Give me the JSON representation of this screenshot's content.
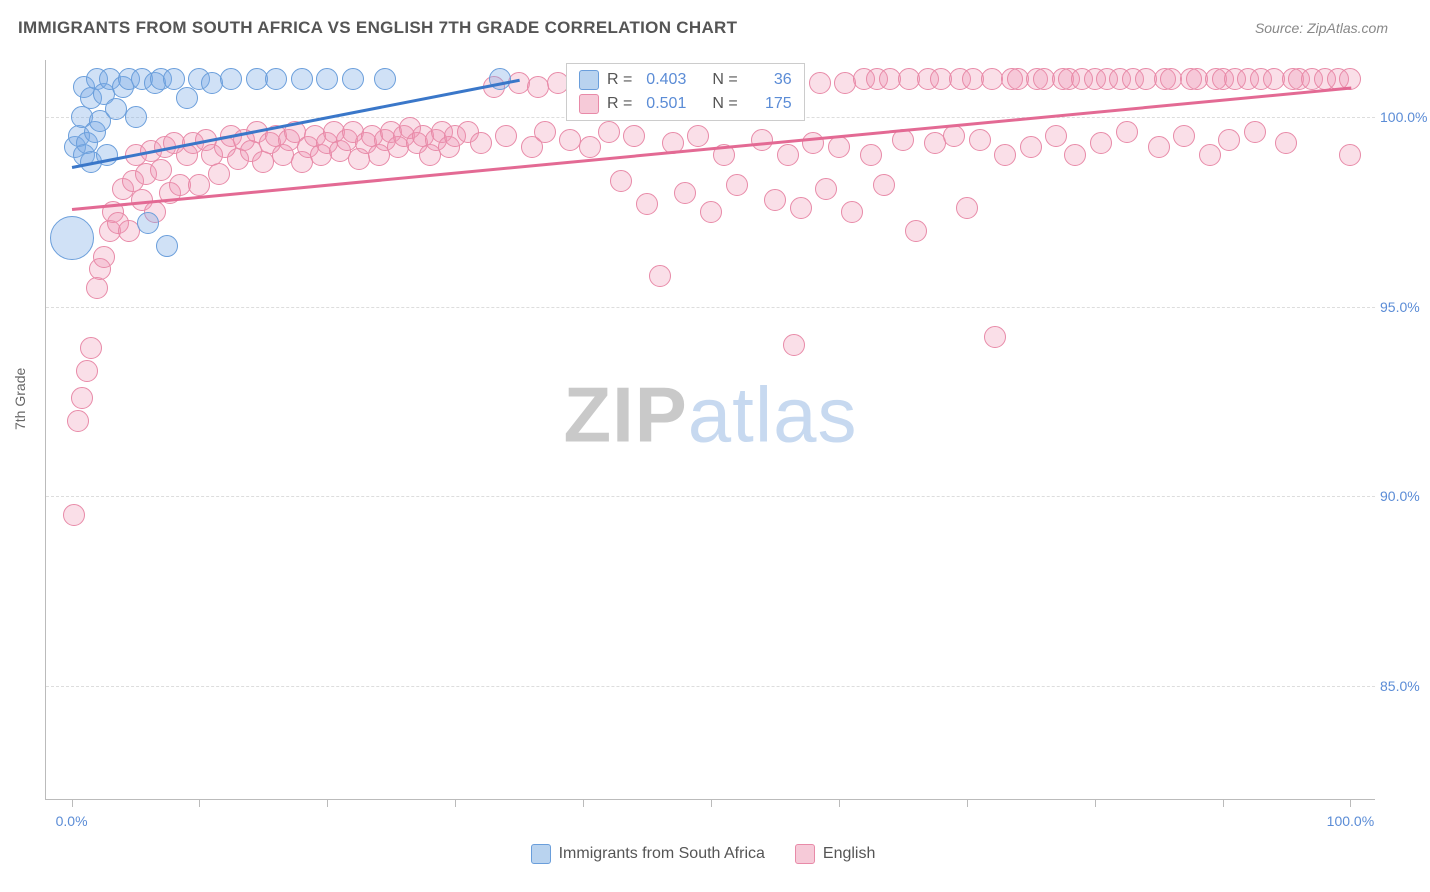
{
  "title": "IMMIGRANTS FROM SOUTH AFRICA VS ENGLISH 7TH GRADE CORRELATION CHART",
  "source": "Source: ZipAtlas.com",
  "watermark": {
    "part1": "ZIP",
    "part2": "atlas"
  },
  "y_axis": {
    "title": "7th Grade",
    "min": 82.0,
    "max": 101.5,
    "ticks": [
      85.0,
      90.0,
      95.0,
      100.0
    ],
    "tick_labels": [
      "85.0%",
      "90.0%",
      "95.0%",
      "100.0%"
    ]
  },
  "x_axis": {
    "min": -2.0,
    "max": 102.0,
    "ticks": [
      0,
      10,
      20,
      30,
      40,
      50,
      60,
      70,
      80,
      90,
      100
    ],
    "labels": {
      "0": "0.0%",
      "100": "100.0%"
    }
  },
  "legend": {
    "series1": "Immigrants from South Africa",
    "series2": "English"
  },
  "stats_box": {
    "row1": {
      "r_label": "R =",
      "r_val": "0.403",
      "n_label": "N =",
      "n_val": "36"
    },
    "row2": {
      "r_label": "R =",
      "r_val": "0.501",
      "n_label": "N =",
      "n_val": "175"
    }
  },
  "series": {
    "blue": {
      "color_fill": "rgba(120,170,230,0.35)",
      "color_stroke": "#6a9edb",
      "marker_r": 11,
      "trend": {
        "x1": 0,
        "y1": 98.7,
        "x2": 35,
        "y2": 101.0,
        "color": "#3a77c9"
      },
      "points": [
        [
          0.0,
          96.8,
          22
        ],
        [
          0.3,
          99.2,
          11
        ],
        [
          0.6,
          99.5,
          11
        ],
        [
          0.8,
          100.0,
          11
        ],
        [
          1.0,
          99.0,
          11
        ],
        [
          1.0,
          100.8,
          11
        ],
        [
          1.2,
          99.3,
          11
        ],
        [
          1.5,
          98.8,
          11
        ],
        [
          1.5,
          100.5,
          11
        ],
        [
          1.8,
          99.6,
          11
        ],
        [
          2.0,
          101.0,
          11
        ],
        [
          2.2,
          99.9,
          11
        ],
        [
          2.5,
          100.6,
          11
        ],
        [
          2.8,
          99.0,
          11
        ],
        [
          3.0,
          101.0,
          11
        ],
        [
          3.5,
          100.2,
          11
        ],
        [
          4.0,
          100.8,
          11
        ],
        [
          4.5,
          101.0,
          11
        ],
        [
          5.0,
          100.0,
          11
        ],
        [
          5.5,
          101.0,
          11
        ],
        [
          6.0,
          97.2,
          11
        ],
        [
          6.5,
          100.9,
          11
        ],
        [
          7.0,
          101.0,
          11
        ],
        [
          7.5,
          96.6,
          11
        ],
        [
          8.0,
          101.0,
          11
        ],
        [
          9.0,
          100.5,
          11
        ],
        [
          10.0,
          101.0,
          11
        ],
        [
          11.0,
          100.9,
          11
        ],
        [
          12.5,
          101.0,
          11
        ],
        [
          14.5,
          101.0,
          11
        ],
        [
          16.0,
          101.0,
          11
        ],
        [
          18.0,
          101.0,
          11
        ],
        [
          20.0,
          101.0,
          11
        ],
        [
          22.0,
          101.0,
          11
        ],
        [
          24.5,
          101.0,
          11
        ],
        [
          33.5,
          101.0,
          11
        ]
      ]
    },
    "pink": {
      "color_fill": "rgba(240,150,180,0.30)",
      "color_stroke": "#e88aa8",
      "marker_r": 11,
      "trend": {
        "x1": 0,
        "y1": 97.6,
        "x2": 100,
        "y2": 100.8,
        "color": "#e36a94"
      },
      "points": [
        [
          0.2,
          89.5,
          11
        ],
        [
          0.5,
          92.0,
          11
        ],
        [
          0.8,
          92.6,
          11
        ],
        [
          1.2,
          93.3,
          11
        ],
        [
          1.5,
          93.9,
          11
        ],
        [
          2.0,
          95.5,
          11
        ],
        [
          2.2,
          96.0,
          11
        ],
        [
          2.5,
          96.3,
          11
        ],
        [
          3.0,
          97.0,
          11
        ],
        [
          3.2,
          97.5,
          11
        ],
        [
          3.6,
          97.2,
          11
        ],
        [
          4.0,
          98.1,
          11
        ],
        [
          4.5,
          97.0,
          11
        ],
        [
          4.8,
          98.3,
          11
        ],
        [
          5.0,
          99.0,
          11
        ],
        [
          5.5,
          97.8,
          11
        ],
        [
          5.8,
          98.5,
          11
        ],
        [
          6.2,
          99.1,
          11
        ],
        [
          6.5,
          97.5,
          11
        ],
        [
          7.0,
          98.6,
          11
        ],
        [
          7.3,
          99.2,
          11
        ],
        [
          7.7,
          98.0,
          11
        ],
        [
          8.0,
          99.3,
          11
        ],
        [
          8.5,
          98.2,
          11
        ],
        [
          9.0,
          99.0,
          11
        ],
        [
          9.5,
          99.3,
          11
        ],
        [
          10.0,
          98.2,
          11
        ],
        [
          10.5,
          99.4,
          11
        ],
        [
          11.0,
          99.0,
          11
        ],
        [
          11.5,
          98.5,
          11
        ],
        [
          12.0,
          99.2,
          11
        ],
        [
          12.5,
          99.5,
          11
        ],
        [
          13.0,
          98.9,
          11
        ],
        [
          13.5,
          99.4,
          11
        ],
        [
          14.0,
          99.1,
          11
        ],
        [
          14.5,
          99.6,
          11
        ],
        [
          15.0,
          98.8,
          11
        ],
        [
          15.5,
          99.3,
          11
        ],
        [
          16.0,
          99.5,
          11
        ],
        [
          16.5,
          99.0,
          11
        ],
        [
          17.0,
          99.4,
          11
        ],
        [
          17.5,
          99.6,
          11
        ],
        [
          18.0,
          98.8,
          11
        ],
        [
          18.5,
          99.2,
          11
        ],
        [
          19.0,
          99.5,
          11
        ],
        [
          19.5,
          99.0,
          11
        ],
        [
          20.0,
          99.3,
          11
        ],
        [
          20.5,
          99.6,
          11
        ],
        [
          21.0,
          99.1,
          11
        ],
        [
          21.5,
          99.4,
          11
        ],
        [
          22.0,
          99.6,
          11
        ],
        [
          22.5,
          98.9,
          11
        ],
        [
          23.0,
          99.3,
          11
        ],
        [
          23.5,
          99.5,
          11
        ],
        [
          24.0,
          99.0,
          11
        ],
        [
          24.5,
          99.4,
          11
        ],
        [
          25.0,
          99.6,
          11
        ],
        [
          25.5,
          99.2,
          11
        ],
        [
          26.0,
          99.5,
          11
        ],
        [
          26.5,
          99.7,
          11
        ],
        [
          27.0,
          99.3,
          11
        ],
        [
          27.5,
          99.5,
          11
        ],
        [
          28.0,
          99.0,
          11
        ],
        [
          28.5,
          99.4,
          11
        ],
        [
          29.0,
          99.6,
          11
        ],
        [
          29.5,
          99.2,
          11
        ],
        [
          30.0,
          99.5,
          11
        ],
        [
          31.0,
          99.6,
          11
        ],
        [
          32.0,
          99.3,
          11
        ],
        [
          33.0,
          100.8,
          11
        ],
        [
          34.0,
          99.5,
          11
        ],
        [
          35.0,
          100.9,
          11
        ],
        [
          36.0,
          99.2,
          11
        ],
        [
          36.5,
          100.8,
          11
        ],
        [
          37.0,
          99.6,
          11
        ],
        [
          38.0,
          100.9,
          11
        ],
        [
          39.0,
          99.4,
          11
        ],
        [
          40.0,
          100.8,
          11
        ],
        [
          40.5,
          99.2,
          11
        ],
        [
          41.0,
          100.9,
          11
        ],
        [
          42.0,
          99.6,
          11
        ],
        [
          43.0,
          98.3,
          11
        ],
        [
          44.0,
          99.5,
          11
        ],
        [
          45.0,
          97.7,
          11
        ],
        [
          45.5,
          100.9,
          11
        ],
        [
          46.0,
          95.8,
          11
        ],
        [
          47.0,
          99.3,
          11
        ],
        [
          47.5,
          100.9,
          11
        ],
        [
          48.0,
          98.0,
          11
        ],
        [
          49.0,
          99.5,
          11
        ],
        [
          50.0,
          97.5,
          11
        ],
        [
          51.0,
          99.0,
          11
        ],
        [
          52.0,
          98.2,
          11
        ],
        [
          53.0,
          100.9,
          11
        ],
        [
          54.0,
          99.4,
          11
        ],
        [
          55.0,
          97.8,
          11
        ],
        [
          55.5,
          100.9,
          11
        ],
        [
          56.0,
          99.0,
          11
        ],
        [
          56.5,
          94.0,
          11
        ],
        [
          57.0,
          97.6,
          11
        ],
        [
          58.0,
          99.3,
          11
        ],
        [
          58.5,
          100.9,
          11
        ],
        [
          59.0,
          98.1,
          11
        ],
        [
          60.0,
          99.2,
          11
        ],
        [
          60.5,
          100.9,
          11
        ],
        [
          61.0,
          97.5,
          11
        ],
        [
          62.0,
          101.0,
          11
        ],
        [
          62.5,
          99.0,
          11
        ],
        [
          63.0,
          101.0,
          11
        ],
        [
          63.5,
          98.2,
          11
        ],
        [
          64.0,
          101.0,
          11
        ],
        [
          65.0,
          99.4,
          11
        ],
        [
          65.5,
          101.0,
          11
        ],
        [
          66.0,
          97.0,
          11
        ],
        [
          67.0,
          101.0,
          11
        ],
        [
          67.5,
          99.3,
          11
        ],
        [
          68.0,
          101.0,
          11
        ],
        [
          69.0,
          99.5,
          11
        ],
        [
          69.5,
          101.0,
          11
        ],
        [
          70.0,
          97.6,
          11
        ],
        [
          70.5,
          101.0,
          11
        ],
        [
          71.0,
          99.4,
          11
        ],
        [
          72.0,
          101.0,
          11
        ],
        [
          72.2,
          94.2,
          11
        ],
        [
          73.0,
          99.0,
          11
        ],
        [
          73.5,
          101.0,
          11
        ],
        [
          74.0,
          101.0,
          11
        ],
        [
          75.0,
          99.2,
          11
        ],
        [
          75.5,
          101.0,
          11
        ],
        [
          76.0,
          101.0,
          11
        ],
        [
          77.0,
          99.5,
          11
        ],
        [
          77.5,
          101.0,
          11
        ],
        [
          78.0,
          101.0,
          11
        ],
        [
          78.5,
          99.0,
          11
        ],
        [
          79.0,
          101.0,
          11
        ],
        [
          80.0,
          101.0,
          11
        ],
        [
          80.5,
          99.3,
          11
        ],
        [
          81.0,
          101.0,
          11
        ],
        [
          82.0,
          101.0,
          11
        ],
        [
          82.5,
          99.6,
          11
        ],
        [
          83.0,
          101.0,
          11
        ],
        [
          84.0,
          101.0,
          11
        ],
        [
          85.0,
          99.2,
          11
        ],
        [
          85.5,
          101.0,
          11
        ],
        [
          86.0,
          101.0,
          11
        ],
        [
          87.0,
          99.5,
          11
        ],
        [
          87.5,
          101.0,
          11
        ],
        [
          88.0,
          101.0,
          11
        ],
        [
          89.0,
          99.0,
          11
        ],
        [
          89.5,
          101.0,
          11
        ],
        [
          90.0,
          101.0,
          11
        ],
        [
          90.5,
          99.4,
          11
        ],
        [
          91.0,
          101.0,
          11
        ],
        [
          92.0,
          101.0,
          11
        ],
        [
          92.5,
          99.6,
          11
        ],
        [
          93.0,
          101.0,
          11
        ],
        [
          94.0,
          101.0,
          11
        ],
        [
          95.0,
          99.3,
          11
        ],
        [
          95.5,
          101.0,
          11
        ],
        [
          96.0,
          101.0,
          11
        ],
        [
          97.0,
          101.0,
          11
        ],
        [
          98.0,
          101.0,
          11
        ],
        [
          99.0,
          101.0,
          11
        ],
        [
          100.0,
          101.0,
          11
        ],
        [
          100.0,
          99.0,
          11
        ]
      ]
    }
  },
  "colors": {
    "blue_swatch_fill": "#b9d3ef",
    "blue_swatch_stroke": "#6a9edb",
    "pink_swatch_fill": "#f6cad8",
    "pink_swatch_stroke": "#e88aa8"
  }
}
